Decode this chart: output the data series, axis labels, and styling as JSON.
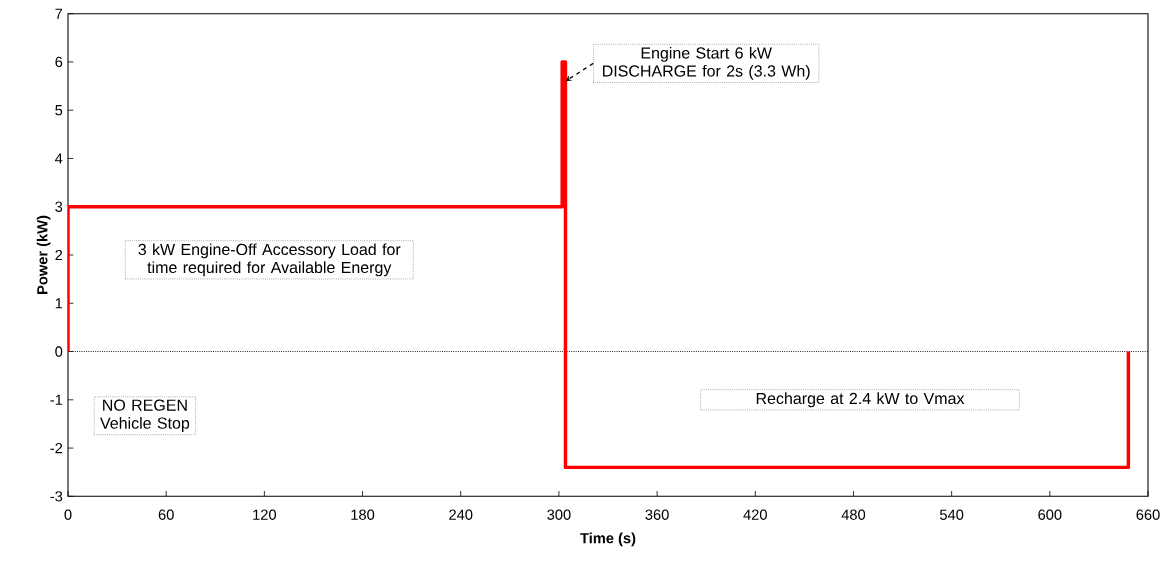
{
  "chart_data": {
    "type": "line",
    "xlabel": "Time (s)",
    "ylabel": "Power (kW)",
    "x": [
      0,
      0,
      302,
      302,
      304,
      304,
      648,
      648
    ],
    "series": [
      {
        "color": "#ff0000",
        "values": [
          0,
          3,
          3,
          6,
          6,
          -2.4,
          -2.4,
          0
        ]
      }
    ],
    "xlim": [
      0,
      660
    ],
    "xticks": [
      0,
      60,
      120,
      180,
      240,
      300,
      360,
      420,
      480,
      540,
      600,
      660
    ],
    "ylim": [
      -3,
      7
    ],
    "yticks": [
      -3,
      -2,
      -1,
      0,
      1,
      2,
      3,
      4,
      5,
      6,
      7
    ],
    "ref_lines": [
      {
        "axis": "y",
        "value": 0,
        "color": "#000000",
        "line_style": "dotted"
      }
    ],
    "annotations": [
      {
        "text": "Engine Start 6 kW DISCHARGE for 2s (3.3 Wh)",
        "x": 304,
        "y": 5.6
      },
      "3 kW Engine-Off Accessory Load for time required for Available Energy",
      "NO REGEN Vehicle Stop",
      "Recharge at 2.4 kW to Vmax"
    ],
    "grid": false,
    "marker": "none",
    "line_style": "solid"
  }
}
